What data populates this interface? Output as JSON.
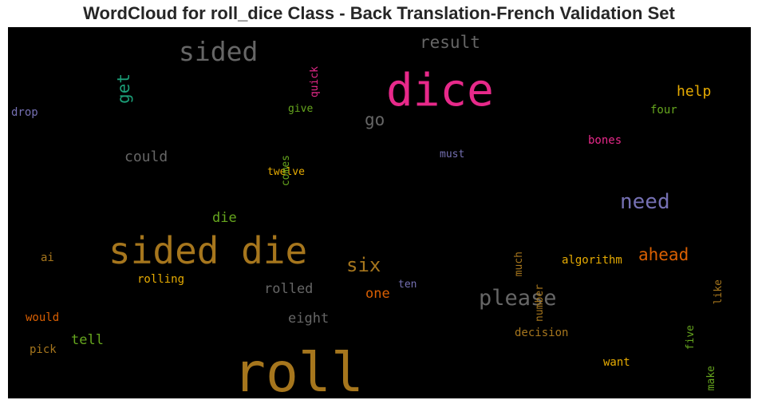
{
  "chart_data": {
    "type": "wordcloud",
    "title": "WordCloud for roll_dice Class - Back Translation-French Validation Set",
    "background": "#000000",
    "words": [
      {
        "text": "roll",
        "size": 68,
        "color": "#a6761d",
        "vertical": false
      },
      {
        "text": "dice",
        "size": 56,
        "color": "#e7298a",
        "vertical": false
      },
      {
        "text": "sided die",
        "size": 46,
        "color": "#a6761d",
        "vertical": false
      },
      {
        "text": "sided",
        "size": 33,
        "color": "#666666",
        "vertical": false
      },
      {
        "text": "please",
        "size": 27,
        "color": "#666666",
        "vertical": false
      },
      {
        "text": "need",
        "size": 26,
        "color": "#7570b3",
        "vertical": false
      },
      {
        "text": "six",
        "size": 24,
        "color": "#a6761d",
        "vertical": false
      },
      {
        "text": "result",
        "size": 21,
        "color": "#666666",
        "vertical": false
      },
      {
        "text": "get",
        "size": 21,
        "color": "#1b9e77",
        "vertical": true
      },
      {
        "text": "ahead",
        "size": 21,
        "color": "#d95f02",
        "vertical": false
      },
      {
        "text": "go",
        "size": 21,
        "color": "#666666",
        "vertical": false
      },
      {
        "text": "help",
        "size": 18,
        "color": "#e6ab02",
        "vertical": false
      },
      {
        "text": "could",
        "size": 18,
        "color": "#666666",
        "vertical": false
      },
      {
        "text": "rolled",
        "size": 17,
        "color": "#666666",
        "vertical": false
      },
      {
        "text": "eight",
        "size": 17,
        "color": "#666666",
        "vertical": false
      },
      {
        "text": "die",
        "size": 17,
        "color": "#66a61e",
        "vertical": false
      },
      {
        "text": "one",
        "size": 17,
        "color": "#d95f02",
        "vertical": false
      },
      {
        "text": "tell",
        "size": 17,
        "color": "#66a61e",
        "vertical": false
      },
      {
        "text": "algorithm",
        "size": 14,
        "color": "#e6ab02",
        "vertical": false
      },
      {
        "text": "decision",
        "size": 14,
        "color": "#a6761d",
        "vertical": false
      },
      {
        "text": "rolling",
        "size": 14,
        "color": "#e6ab02",
        "vertical": false
      },
      {
        "text": "bones",
        "size": 14,
        "color": "#e7298a",
        "vertical": false
      },
      {
        "text": "four",
        "size": 14,
        "color": "#66a61e",
        "vertical": false
      },
      {
        "text": "drop",
        "size": 14,
        "color": "#7570b3",
        "vertical": false
      },
      {
        "text": "give",
        "size": 13,
        "color": "#66a61e",
        "vertical": false
      },
      {
        "text": "must",
        "size": 13,
        "color": "#7570b3",
        "vertical": false
      },
      {
        "text": "twelve",
        "size": 13,
        "color": "#e6ab02",
        "vertical": false
      },
      {
        "text": "would",
        "size": 14,
        "color": "#d95f02",
        "vertical": false
      },
      {
        "text": "pick",
        "size": 14,
        "color": "#a6761d",
        "vertical": false
      },
      {
        "text": "want",
        "size": 14,
        "color": "#e6ab02",
        "vertical": false
      },
      {
        "text": "ai",
        "size": 14,
        "color": "#a6761d",
        "vertical": false
      },
      {
        "text": "ten",
        "size": 13,
        "color": "#7570b3",
        "vertical": false
      },
      {
        "text": "quick",
        "size": 13,
        "color": "#e7298a",
        "vertical": true
      },
      {
        "text": "comes",
        "size": 13,
        "color": "#66a61e",
        "vertical": true
      },
      {
        "text": "much",
        "size": 13,
        "color": "#a6761d",
        "vertical": true
      },
      {
        "text": "number",
        "size": 13,
        "color": "#a6761d",
        "vertical": true
      },
      {
        "text": "like",
        "size": 13,
        "color": "#a6761d",
        "vertical": true
      },
      {
        "text": "five",
        "size": 13,
        "color": "#66a61e",
        "vertical": true
      },
      {
        "text": "make",
        "size": 13,
        "color": "#66a61e",
        "vertical": true
      }
    ]
  }
}
